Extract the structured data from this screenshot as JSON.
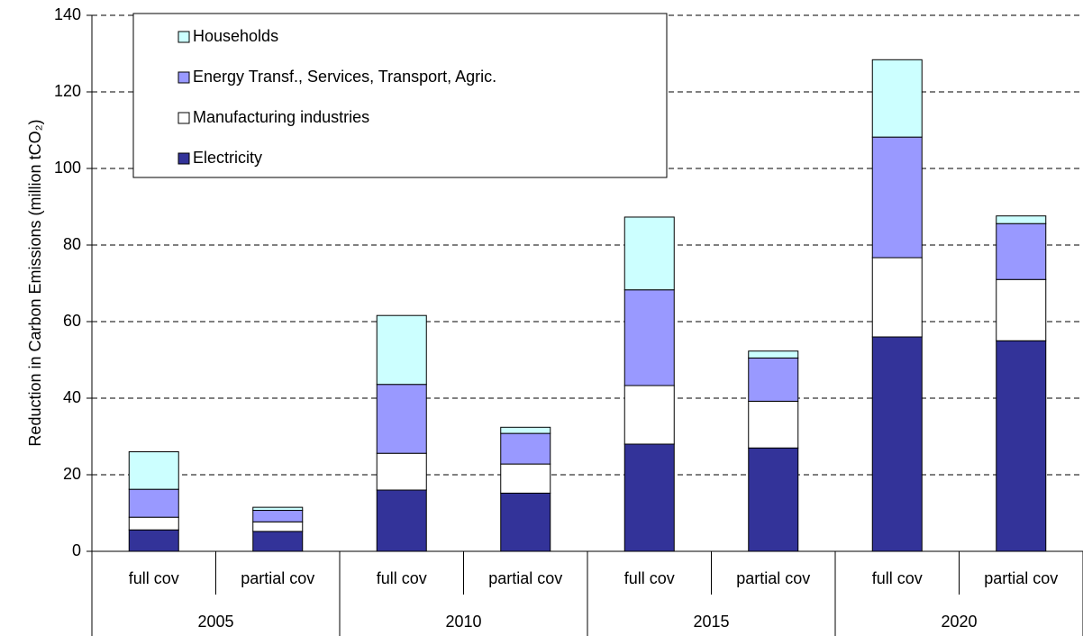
{
  "chart_data": {
    "type": "stacked_bar",
    "y_label": "Reduction in Carbon Emissions (million tCO₂)",
    "categories": [
      "full cov",
      "partial cov",
      "full cov",
      "partial cov",
      "full cov",
      "partial cov",
      "full cov",
      "partial cov"
    ],
    "group_labels": [
      "2005",
      "2010",
      "2015",
      "2020"
    ],
    "series": [
      {
        "name": "Electricity",
        "color": "#333399",
        "values": [
          5.6,
          5.2,
          16,
          15.2,
          28,
          27,
          56,
          55
        ]
      },
      {
        "name": "Manufacturing industries",
        "color": "#ffffff",
        "values": [
          3.3,
          2.5,
          9.6,
          7.6,
          15.3,
          12.2,
          20.7,
          16
        ]
      },
      {
        "name": "Energy Transf., Services, Transport, Agric.",
        "color": "#9999ff",
        "values": [
          7.3,
          3,
          18,
          8,
          25,
          11.3,
          31.5,
          14.6
        ]
      },
      {
        "name": "Households",
        "color": "#ccffff",
        "values": [
          9.8,
          0.8,
          18,
          1.6,
          19,
          1.8,
          20.2,
          2
        ]
      }
    ],
    "ylim": [
      0,
      140
    ],
    "yticks": [
      0,
      20,
      40,
      60,
      80,
      100,
      120,
      140
    ],
    "grid": true,
    "legend": "upper left"
  }
}
